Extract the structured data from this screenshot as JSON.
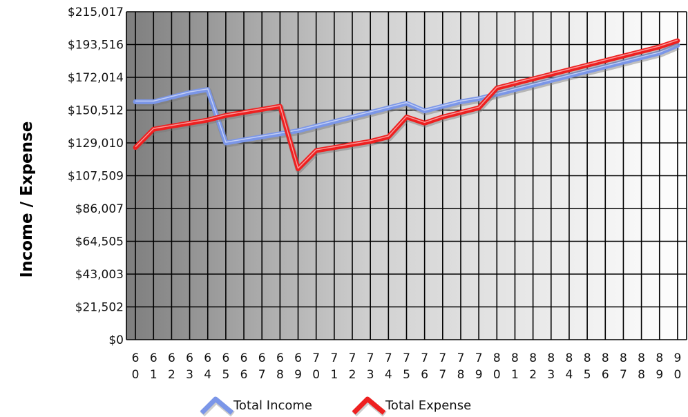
{
  "chart_data": {
    "type": "line",
    "ylabel": "Income / Expense",
    "xlabel": "",
    "ylim": [
      0,
      215017
    ],
    "yticks": [
      "$0",
      "$21,502",
      "$43,003",
      "$64,505",
      "$86,007",
      "$107,509",
      "$129,010",
      "$150,512",
      "$172,014",
      "$193,516",
      "$215,017"
    ],
    "ytick_values": [
      0,
      21502,
      43003,
      64505,
      86007,
      107509,
      129010,
      150512,
      172014,
      193516,
      215017
    ],
    "x": [
      "60",
      "61",
      "62",
      "63",
      "64",
      "65",
      "66",
      "67",
      "68",
      "69",
      "70",
      "71",
      "72",
      "73",
      "74",
      "75",
      "76",
      "77",
      "78",
      "79",
      "80",
      "81",
      "82",
      "83",
      "84",
      "85",
      "86",
      "87",
      "88",
      "89",
      "90"
    ],
    "grid": true,
    "legend_position": "bottom",
    "series": [
      {
        "name": "Total Income",
        "color": "#7b96e8",
        "values": [
          156000,
          156000,
          159000,
          162000,
          164000,
          129000,
          131000,
          133000,
          135000,
          137000,
          140000,
          143000,
          146000,
          149000,
          152000,
          155000,
          150000,
          153000,
          156000,
          158000,
          161000,
          164000,
          167000,
          170000,
          173000,
          176000,
          179000,
          182000,
          185000,
          188000,
          193000
        ]
      },
      {
        "name": "Total Expense",
        "color": "#ee2020",
        "values": [
          126000,
          138000,
          140000,
          142000,
          144000,
          147000,
          149000,
          151000,
          153000,
          112000,
          124000,
          126000,
          128000,
          130000,
          133000,
          146000,
          142000,
          146000,
          149000,
          152000,
          165000,
          168000,
          171000,
          174000,
          177000,
          180000,
          183000,
          186000,
          189000,
          192000,
          196000
        ]
      }
    ]
  }
}
